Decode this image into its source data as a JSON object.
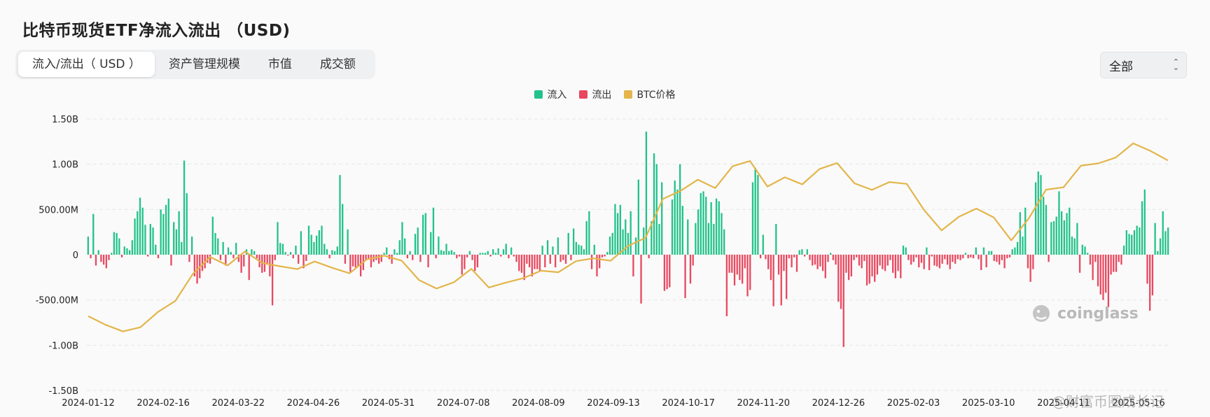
{
  "header": {
    "title": "比特币现货ETF净流入流出 （USD)"
  },
  "tabs": [
    {
      "label": "流入/流出（ USD ）",
      "active": true
    },
    {
      "label": "资产管理规模",
      "active": false
    },
    {
      "label": "市值",
      "active": false
    },
    {
      "label": "成交额",
      "active": false
    }
  ],
  "range_select": {
    "value": "全部"
  },
  "watermark": {
    "logo_text": "coinglass",
    "credit": "@财富币圈成长记"
  },
  "colors": {
    "inflow": "#22c28a",
    "outflow": "#e8485f",
    "price": "#e3b54a",
    "grid": "#e6e6e6"
  },
  "chart_data": {
    "type": "bar",
    "title": "",
    "xlabel": "",
    "ylabel": "",
    "ylim": [
      -1500000000,
      1500000000
    ],
    "grid": true,
    "legend_position": "top-center",
    "y_tick_labels": [
      "1.50B",
      "1.00B",
      "500.00M",
      "0",
      "-500.00M",
      "-1.00B",
      "-1.50B"
    ],
    "y_tick_values": [
      1500000000,
      1000000000,
      500000000,
      0,
      -500000000,
      -1000000000,
      -1500000000
    ],
    "x_tick_labels": [
      "2024-01-12",
      "2024-02-16",
      "2024-03-22",
      "2024-04-26",
      "2024-05-31",
      "2024-07-08",
      "2024-08-09",
      "2024-09-13",
      "2024-10-17",
      "2024-11-20",
      "2024-12-26",
      "2025-02-03",
      "2025-03-10",
      "2025-04-11",
      "2025-05-16"
    ],
    "series": [
      {
        "name": "流入",
        "kind": "bar",
        "color": "#22c28a"
      },
      {
        "name": "流出",
        "kind": "bar",
        "color": "#e8485f"
      },
      {
        "name": "BTC价格",
        "kind": "line",
        "color": "#e3b54a"
      }
    ],
    "flows_millions": [
      200,
      -40,
      450,
      -120,
      50,
      -80,
      -110,
      -150,
      -60,
      20,
      250,
      240,
      180,
      -30,
      90,
      70,
      50,
      160,
      400,
      480,
      630,
      520,
      330,
      -20,
      340,
      300,
      110,
      -40,
      500,
      450,
      550,
      620,
      -120,
      360,
      280,
      480,
      140,
      1040,
      680,
      -80,
      200,
      -240,
      -320,
      -260,
      -180,
      -150,
      -90,
      -100,
      420,
      240,
      180,
      -60,
      140,
      -120,
      80,
      30,
      -40,
      130,
      -80,
      -200,
      -130,
      60,
      -280,
      60,
      40,
      -40,
      -140,
      -200,
      -190,
      -100,
      -240,
      -560,
      -60,
      360,
      130,
      120,
      30,
      -10,
      30,
      -40,
      100,
      -100,
      260,
      -150,
      -70,
      320,
      220,
      140,
      210,
      270,
      320,
      120,
      60,
      -40,
      50,
      40,
      90,
      880,
      560,
      -100,
      280,
      -190,
      -130,
      -140,
      -130,
      -240,
      -170,
      -60,
      -40,
      -140,
      -80,
      -60,
      -100,
      -80,
      20,
      80,
      -50,
      -100,
      60,
      20,
      160,
      360,
      180,
      -40,
      40,
      -60,
      230,
      300,
      -80,
      440,
      460,
      -140,
      250,
      520,
      -40,
      200,
      50,
      40,
      120,
      40,
      50,
      30,
      -40,
      -20,
      -220,
      -160,
      -30,
      40,
      -60,
      -180,
      -140,
      20,
      20,
      20,
      40,
      -20,
      60,
      20,
      70,
      -20,
      60,
      120,
      -40,
      80,
      -20,
      -80,
      -180,
      -200,
      -280,
      -100,
      -140,
      -240,
      -160,
      -160,
      -180,
      100,
      -140,
      160,
      -100,
      90,
      -140,
      190,
      -80,
      -60,
      -100,
      240,
      -60,
      290,
      140,
      110,
      100,
      60,
      370,
      480,
      -160,
      110,
      -240,
      -150,
      -30,
      -20,
      30,
      200,
      240,
      560,
      460,
      550,
      280,
      390,
      240,
      480,
      -240,
      190,
      830,
      -540,
      300,
      1360,
      -40,
      370,
      1120,
      1000,
      340,
      800,
      -400,
      -380,
      -360,
      610,
      820,
      720,
      1000,
      540,
      -480,
      390,
      -320,
      -120,
      350,
      500,
      680,
      700,
      640,
      350,
      580,
      340,
      620,
      590,
      460,
      280,
      -680,
      -200,
      -200,
      -340,
      -220,
      -280,
      -320,
      -150,
      -460,
      -390,
      800,
      960,
      880,
      -40,
      220,
      -50,
      -160,
      -280,
      -570,
      340,
      -220,
      -560,
      -180,
      -490,
      -40,
      -140,
      -30,
      -190,
      50,
      60,
      -20,
      60,
      -60,
      -120,
      -110,
      -160,
      -130,
      -180,
      -260,
      -80,
      20,
      -60,
      -110,
      -520,
      -600,
      -1020,
      -200,
      -280,
      -240,
      -60,
      -30,
      -120,
      -150,
      -70,
      -340,
      -320,
      -240,
      -300,
      -220,
      -120,
      -160,
      -180,
      -120,
      -60,
      -200,
      -260,
      -180,
      -260,
      100,
      80,
      -60,
      -110,
      -80,
      -30,
      -140,
      -90,
      -160,
      80,
      -170,
      -20,
      -120,
      -130,
      -150,
      -100,
      -50,
      -110,
      -160,
      -80,
      -100,
      -50,
      -60,
      -40,
      20,
      -40,
      -30,
      -40,
      80,
      -50,
      -170,
      80,
      -140,
      40,
      40,
      -70,
      -80,
      -110,
      -60,
      -150,
      -40,
      -30,
      60,
      80,
      140,
      470,
      200,
      520,
      -150,
      -300,
      -160,
      800,
      920,
      880,
      640,
      550,
      -80,
      360,
      370,
      420,
      700,
      480,
      380,
      460,
      520,
      200,
      180,
      350,
      -200,
      110,
      90,
      20,
      -110,
      -280,
      -80,
      -350,
      -440,
      -500,
      -420,
      -580,
      -220,
      -190,
      -190,
      -80,
      -110,
      100,
      270,
      230,
      220,
      270,
      320,
      300,
      590,
      720,
      -320,
      -620,
      -450,
      350,
      40,
      180,
      480,
      260,
      300
    ],
    "btc_price_path_usd": [
      46000,
      42700,
      40200,
      41800,
      47600,
      51800,
      62000,
      68500,
      65300,
      70600,
      66200,
      65000,
      63900,
      66800,
      64400,
      62300,
      67600,
      69000,
      67100,
      59700,
      56500,
      58900,
      64000,
      56900,
      58800,
      60500,
      63300,
      62700,
      66900,
      68000,
      67100,
      72700,
      75800,
      90600,
      93600,
      97900,
      94700,
      103000,
      105000,
      95300,
      98800,
      96100,
      102000,
      104200,
      96500,
      94000,
      97000,
      96300,
      86300,
      78600,
      83800,
      86900,
      83500,
      74800,
      83100,
      94100,
      95000,
      103200,
      104100,
      106300,
      111700,
      108800,
      105200
    ]
  }
}
